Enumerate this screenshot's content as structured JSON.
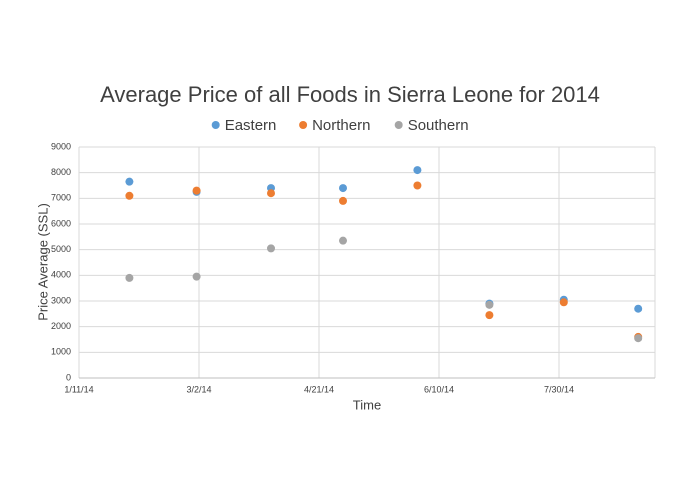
{
  "chart_data": {
    "type": "scatter",
    "title": "Average Price of all Foods in Sierra Leone for 2014",
    "x_label": "Time",
    "y_label": "Price Average (SSL)",
    "x": [
      "2/1/14",
      "3/1/14",
      "4/1/14",
      "5/1/14",
      "6/1/14",
      "7/1/14",
      "8/1/14",
      "9/1/14"
    ],
    "series": [
      {
        "name": "Eastern",
        "color": "#5b9bd5",
        "values": [
          7650,
          7250,
          7400,
          7400,
          8100,
          2900,
          3050,
          2700
        ]
      },
      {
        "name": "Northern",
        "color": "#ed7d31",
        "values": [
          7100,
          7300,
          7200,
          6900,
          7500,
          2450,
          2950,
          1600
        ]
      },
      {
        "name": "Southern",
        "color": "#a5a5a5",
        "values": [
          3900,
          3950,
          5050,
          5350,
          null,
          2850,
          null,
          1550
        ]
      }
    ],
    "xlim": [
      "1/11/14",
      "9/8/14"
    ],
    "xticks": [
      "1/11/14",
      "3/2/14",
      "4/21/14",
      "6/10/14",
      "7/30/14"
    ],
    "ylim": [
      0,
      9000
    ],
    "yticks": [
      0,
      1000,
      2000,
      3000,
      4000,
      5000,
      6000,
      7000,
      8000,
      9000
    ],
    "grid": true,
    "legend": "top"
  }
}
